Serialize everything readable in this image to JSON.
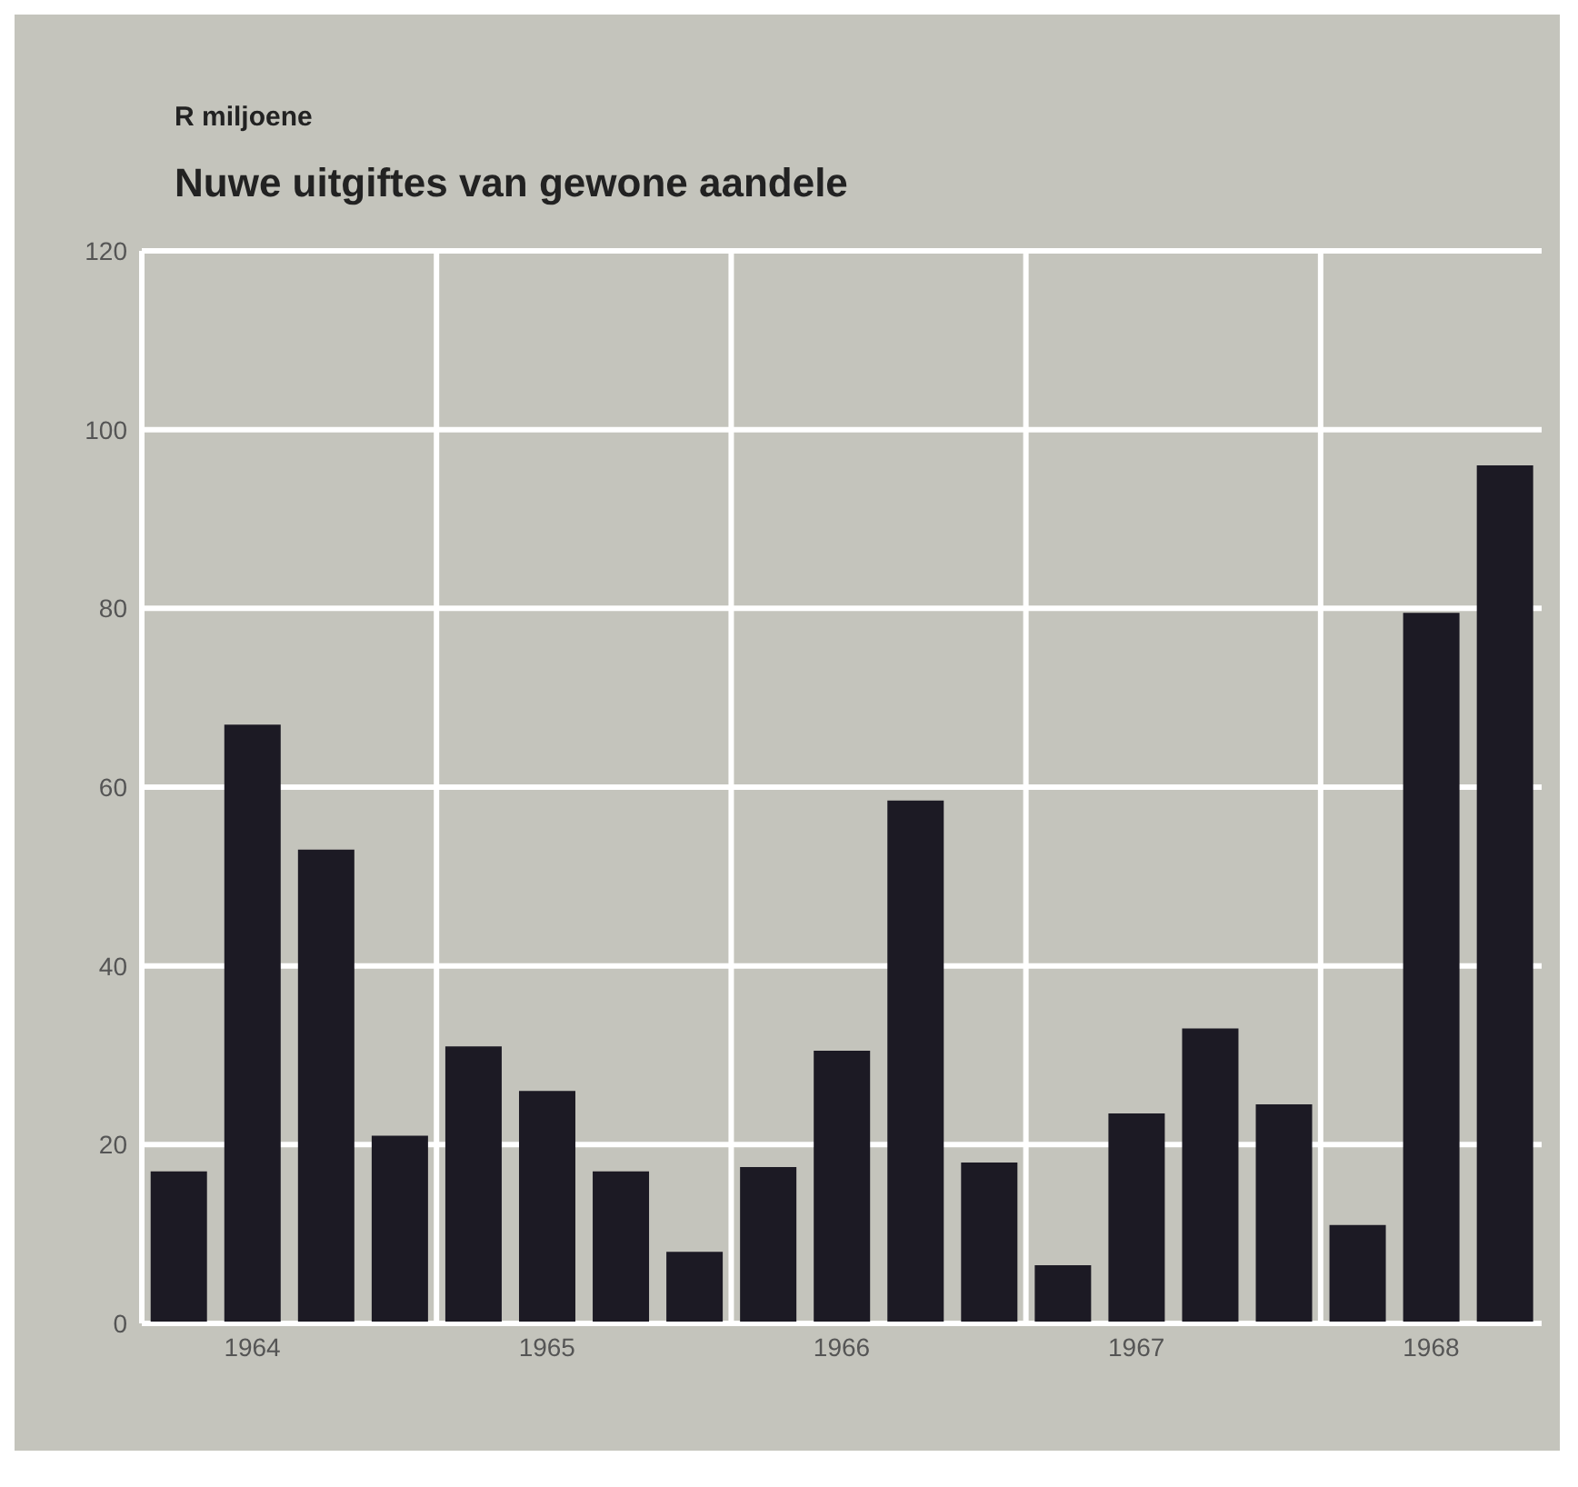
{
  "chart_data": {
    "type": "bar",
    "title": "Nuwe uitgiftes van gewone aandele",
    "ylabel": "R miljoene",
    "categories": [
      null,
      "1964",
      null,
      null,
      null,
      "1965",
      null,
      null,
      null,
      "1966",
      null,
      null,
      null,
      "1967",
      null,
      null,
      null,
      "1968",
      null
    ],
    "values": [
      17,
      67,
      53,
      21,
      31,
      26,
      17,
      8,
      17.5,
      30.5,
      58.5,
      18,
      6.5,
      23.5,
      33,
      24.5,
      11,
      79.5,
      96
    ],
    "color": "#1c1a24",
    "ylim": [
      0,
      120
    ],
    "yticks": [
      0,
      20,
      40,
      60,
      80,
      100,
      120
    ],
    "grid": true
  }
}
